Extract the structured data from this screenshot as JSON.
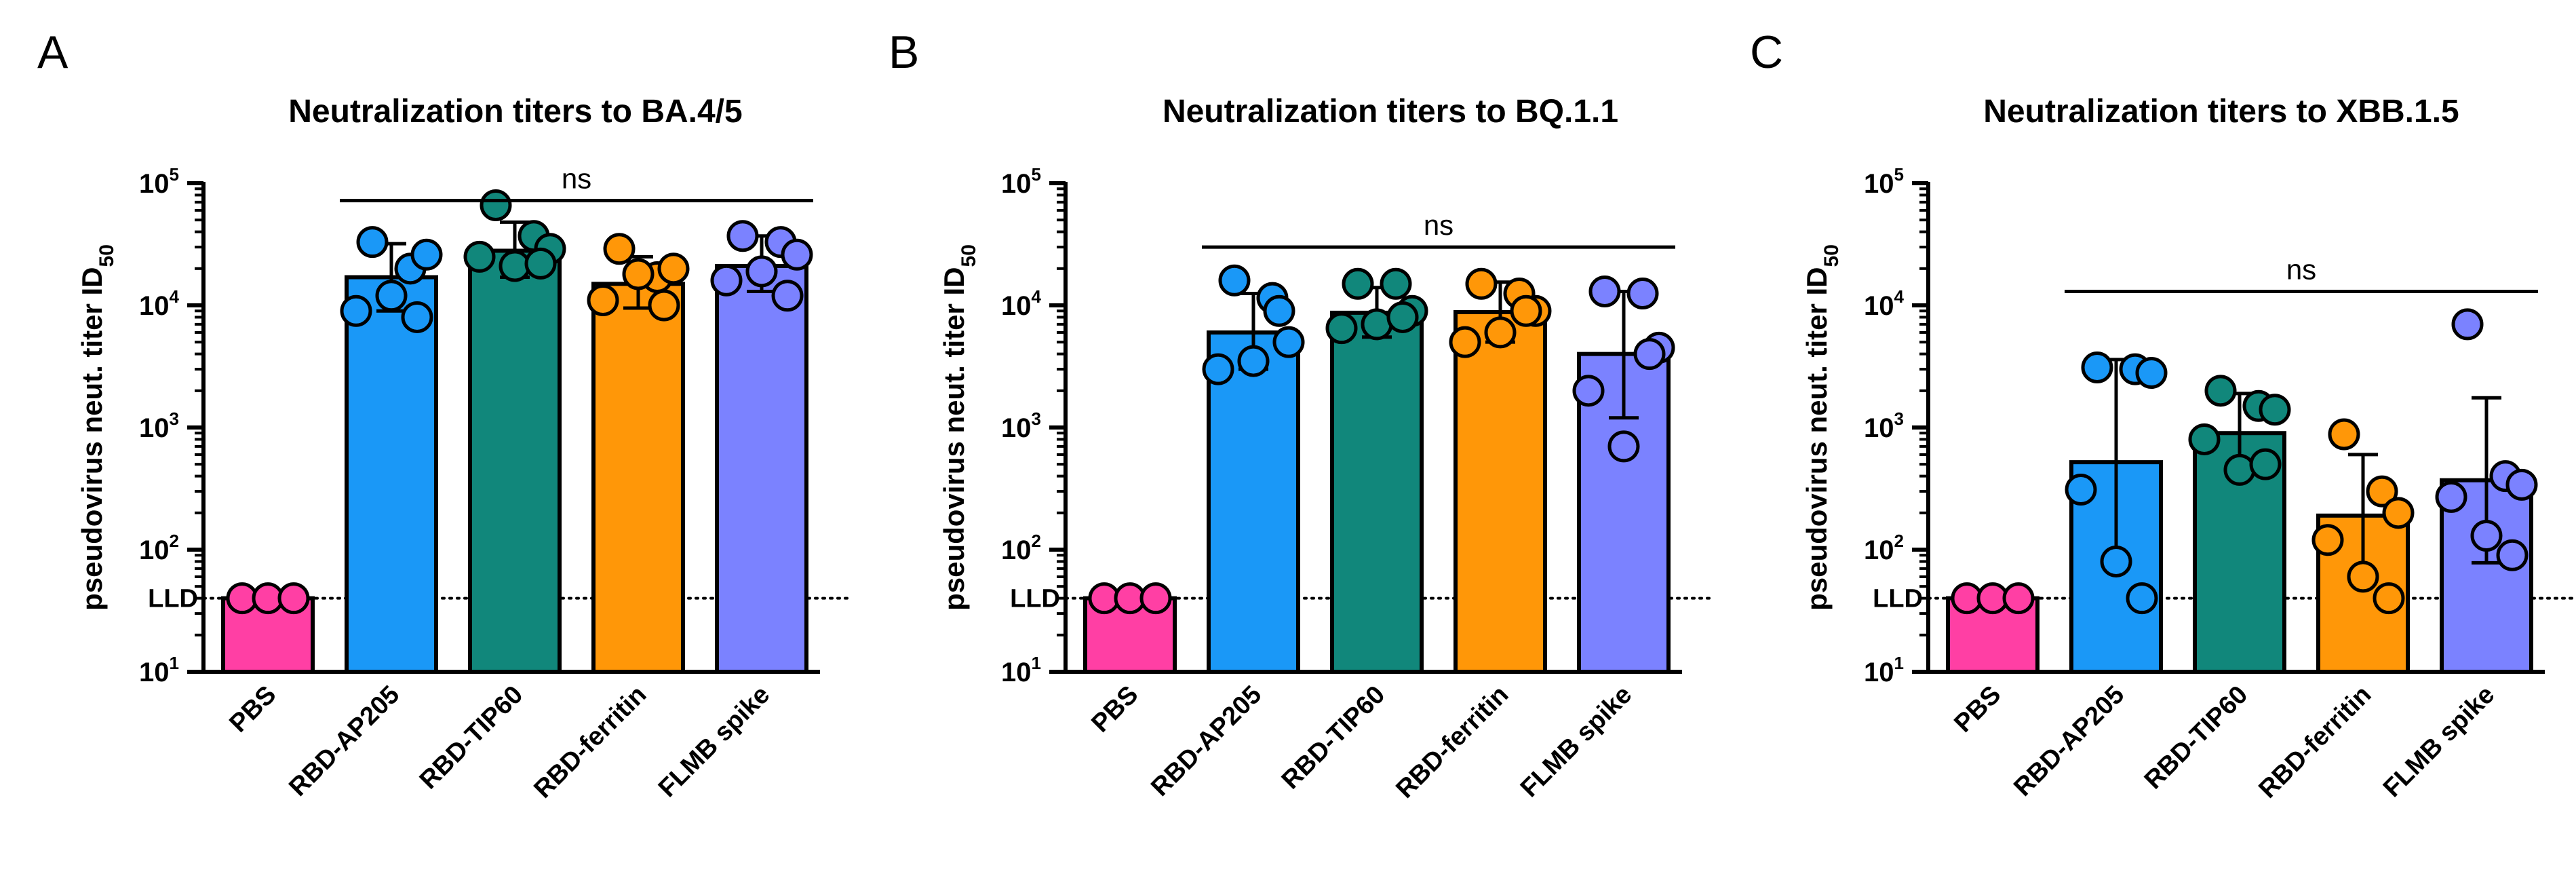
{
  "chart_data": [
    {
      "panel": "A",
      "type": "bar",
      "title": "Neutralization titers to BA.4/5",
      "ylabel_main": "pseudovirus neut. titer ID",
      "ylabel_sub": "50",
      "yscale": "log",
      "ylim": [
        10,
        100000
      ],
      "yticks": [
        {
          "base": "10",
          "exp": "1",
          "value": 10
        },
        {
          "base": "10",
          "exp": "2",
          "value": 100
        },
        {
          "base": "10",
          "exp": "3",
          "value": 1000
        },
        {
          "base": "10",
          "exp": "4",
          "value": 10000
        },
        {
          "base": "10",
          "exp": "5",
          "value": 100000
        }
      ],
      "lld": {
        "label": "LLD",
        "value": 40
      },
      "significance": {
        "label": "ns",
        "from": 1,
        "to": 4,
        "value": 72000
      },
      "categories": [
        "PBS",
        "RBD-AP205",
        "RBD-TIP60",
        "RBD-ferritin",
        "FLMB spike"
      ],
      "bars": [
        {
          "value": 40,
          "sd_low": null,
          "sd_high": null,
          "points": [
            40,
            40,
            40
          ]
        },
        {
          "value": 17000,
          "sd_low": 9000,
          "sd_high": 32000,
          "points": [
            33000,
            20000,
            26000,
            9000,
            12000,
            8000
          ]
        },
        {
          "value": 28000,
          "sd_low": 17000,
          "sd_high": 48000,
          "points": [
            66000,
            37000,
            29000,
            25000,
            21000,
            22000
          ]
        },
        {
          "value": 15000,
          "sd_low": 9500,
          "sd_high": 25000,
          "points": [
            29000,
            17000,
            20000,
            11000,
            18000,
            10000
          ]
        },
        {
          "value": 21000,
          "sd_low": 13000,
          "sd_high": 37000,
          "points": [
            37000,
            33000,
            26000,
            16000,
            19000,
            12000
          ]
        }
      ]
    },
    {
      "panel": "B",
      "type": "bar",
      "title": "Neutralization titers to BQ.1.1",
      "ylabel_main": "pseudovirus neut. titer ID",
      "ylabel_sub": "50",
      "yscale": "log",
      "ylim": [
        10,
        100000
      ],
      "yticks": [
        {
          "base": "10",
          "exp": "1",
          "value": 10
        },
        {
          "base": "10",
          "exp": "2",
          "value": 100
        },
        {
          "base": "10",
          "exp": "3",
          "value": 1000
        },
        {
          "base": "10",
          "exp": "4",
          "value": 10000
        },
        {
          "base": "10",
          "exp": "5",
          "value": 100000
        }
      ],
      "lld": {
        "label": "LLD",
        "value": 40
      },
      "significance": {
        "label": "ns",
        "from": 1,
        "to": 4,
        "value": 30000
      },
      "categories": [
        "PBS",
        "RBD-AP205",
        "RBD-TIP60",
        "RBD-ferritin",
        "FLMB spike"
      ],
      "bars": [
        {
          "value": 40,
          "sd_low": null,
          "sd_high": null,
          "points": [
            40,
            40,
            40
          ]
        },
        {
          "value": 6000,
          "sd_low": 3000,
          "sd_high": 12500,
          "points": [
            16000,
            11500,
            5000,
            3000,
            3500,
            9000
          ]
        },
        {
          "value": 8700,
          "sd_low": 5500,
          "sd_high": 14000,
          "points": [
            15000,
            15000,
            9000,
            6500,
            7000,
            8000
          ]
        },
        {
          "value": 8800,
          "sd_low": 5000,
          "sd_high": 15500,
          "points": [
            15000,
            12500,
            9000,
            5000,
            6000,
            9000
          ]
        },
        {
          "value": 4000,
          "sd_low": 1200,
          "sd_high": 13000,
          "points": [
            13000,
            12500,
            4500,
            2000,
            700,
            4000
          ]
        }
      ]
    },
    {
      "panel": "C",
      "type": "bar",
      "title": "Neutralization titers to XBB.1.5",
      "ylabel_main": "pseudovirus neut. titer ID",
      "ylabel_sub": "50",
      "yscale": "log",
      "ylim": [
        10,
        100000
      ],
      "yticks": [
        {
          "base": "10",
          "exp": "1",
          "value": 10
        },
        {
          "base": "10",
          "exp": "2",
          "value": 100
        },
        {
          "base": "10",
          "exp": "3",
          "value": 1000
        },
        {
          "base": "10",
          "exp": "4",
          "value": 10000
        },
        {
          "base": "10",
          "exp": "5",
          "value": 100000
        }
      ],
      "lld": {
        "label": "LLD",
        "value": 40
      },
      "significance": {
        "label": "ns",
        "from": 1,
        "to": 4,
        "value": 13000
      },
      "categories": [
        "PBS",
        "RBD-AP205",
        "RBD-TIP60",
        "RBD-ferritin",
        "FLMB spike"
      ],
      "bars": [
        {
          "value": 40,
          "sd_low": null,
          "sd_high": null,
          "points": [
            40,
            40,
            40
          ]
        },
        {
          "value": 520,
          "sd_low": 75,
          "sd_high": 3600,
          "points": [
            3100,
            3000,
            2800,
            310,
            80,
            40
          ]
        },
        {
          "value": 900,
          "sd_low": 450,
          "sd_high": 1900,
          "points": [
            2000,
            1500,
            1400,
            800,
            450,
            500
          ]
        },
        {
          "value": 190,
          "sd_low": 60,
          "sd_high": 600,
          "points": [
            880,
            300,
            200,
            120,
            60,
            40
          ]
        },
        {
          "value": 370,
          "sd_low": 78,
          "sd_high": 1750,
          "points": [
            7000,
            400,
            340,
            270,
            130,
            90
          ]
        }
      ]
    }
  ],
  "colors": {
    "bars": [
      "#ff3fa4",
      "#1a98f7",
      "#11877b",
      "#ff9708",
      "#7b82ff"
    ],
    "edge": "#000000"
  }
}
